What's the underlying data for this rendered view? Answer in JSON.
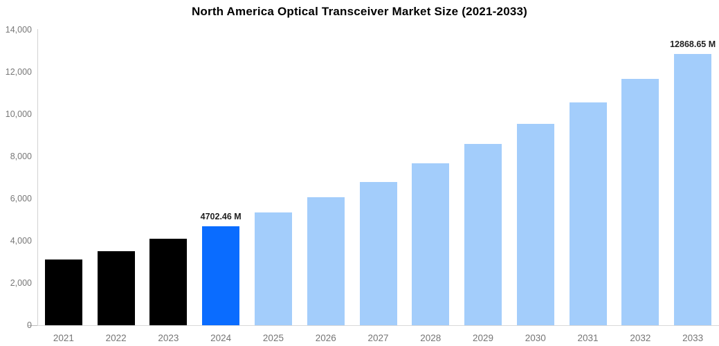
{
  "chart_data": {
    "type": "bar",
    "title": "North America Optical Transceiver Market Size (2021-2033)",
    "categories": [
      "2021",
      "2022",
      "2023",
      "2024",
      "2025",
      "2026",
      "2027",
      "2028",
      "2029",
      "2030",
      "2031",
      "2032",
      "2033"
    ],
    "values": [
      3130,
      3520,
      4090,
      4702.46,
      5330,
      6080,
      6800,
      7670,
      8580,
      9540,
      10560,
      11660,
      12868.65
    ],
    "point_labels": [
      null,
      null,
      null,
      "4702.46 M",
      null,
      null,
      null,
      null,
      null,
      null,
      null,
      null,
      "12868.65 M"
    ],
    "bar_colors": [
      "#000000",
      "#000000",
      "#000000",
      "#0a6cff",
      "#a3cdfb",
      "#a3cdfb",
      "#a3cdfb",
      "#a3cdfb",
      "#a3cdfb",
      "#a3cdfb",
      "#a3cdfb",
      "#a3cdfb",
      "#a3cdfb"
    ],
    "xlabel": "",
    "ylabel": "",
    "ylim": [
      0,
      14000
    ],
    "ytick_labels": [
      "0",
      "2,000",
      "4,000",
      "6,000",
      "8,000",
      "10,000",
      "12,000",
      "14,000"
    ],
    "ytick_values": [
      0,
      2000,
      4000,
      6000,
      8000,
      10000,
      12000,
      14000
    ],
    "grid": false,
    "legend": false,
    "unit": "M"
  },
  "colors": {
    "historical_bar": "#000000",
    "highlight_bar": "#0a6cff",
    "forecast_bar": "#a3cdfb",
    "axis_line": "#d2d2d2",
    "tick_label": "#777777",
    "data_label": "#1f1f1f",
    "title": "#000000"
  }
}
